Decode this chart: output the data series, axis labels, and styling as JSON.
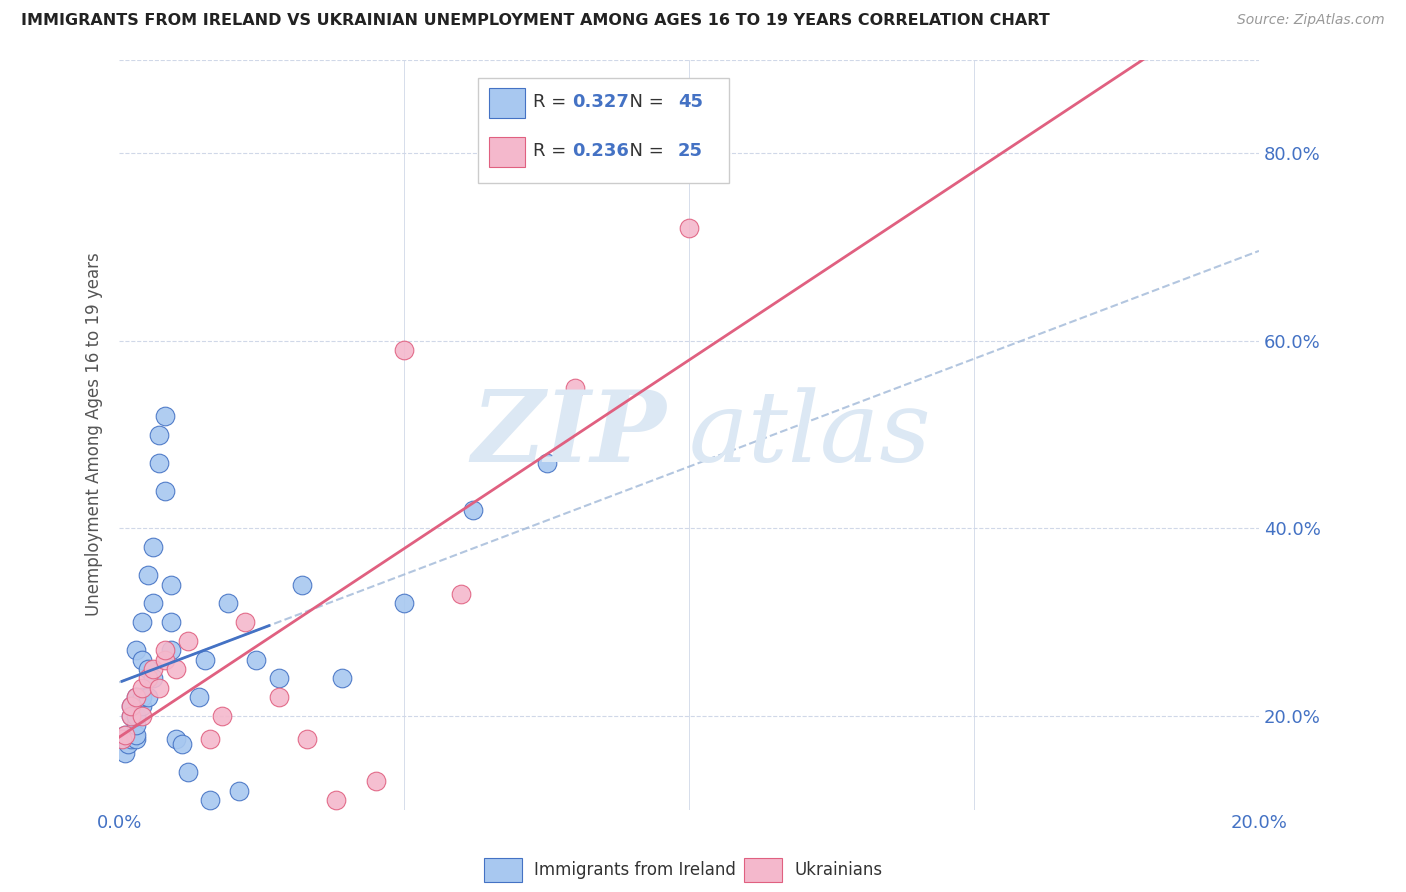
{
  "title": "IMMIGRANTS FROM IRELAND VS UKRAINIAN UNEMPLOYMENT AMONG AGES 16 TO 19 YEARS CORRELATION CHART",
  "source": "Source: ZipAtlas.com",
  "ylabel": "Unemployment Among Ages 16 to 19 years",
  "legend_R1": "0.327",
  "legend_N1": "45",
  "legend_R2": "0.236",
  "legend_N2": "25",
  "series1_color": "#a8c8f0",
  "series2_color": "#f4b8cc",
  "trendline1_color": "#4472c4",
  "trendline2_color": "#e06080",
  "background_color": "#ffffff",
  "grid_color": "#d0d8e8",
  "blue_points_x": [
    0.0005,
    0.001,
    0.001,
    0.0015,
    0.002,
    0.002,
    0.002,
    0.003,
    0.003,
    0.003,
    0.003,
    0.003,
    0.003,
    0.004,
    0.004,
    0.004,
    0.004,
    0.005,
    0.005,
    0.005,
    0.006,
    0.006,
    0.006,
    0.007,
    0.007,
    0.008,
    0.008,
    0.009,
    0.009,
    0.009,
    0.01,
    0.011,
    0.012,
    0.014,
    0.015,
    0.016,
    0.019,
    0.021,
    0.024,
    0.028,
    0.032,
    0.039,
    0.05,
    0.062,
    0.075
  ],
  "blue_points_y": [
    0.175,
    0.18,
    0.16,
    0.17,
    0.175,
    0.2,
    0.21,
    0.175,
    0.18,
    0.19,
    0.2,
    0.22,
    0.27,
    0.21,
    0.22,
    0.26,
    0.3,
    0.22,
    0.25,
    0.35,
    0.32,
    0.38,
    0.24,
    0.47,
    0.5,
    0.52,
    0.44,
    0.34,
    0.3,
    0.27,
    0.175,
    0.17,
    0.14,
    0.22,
    0.26,
    0.11,
    0.32,
    0.12,
    0.26,
    0.24,
    0.34,
    0.24,
    0.32,
    0.42,
    0.47
  ],
  "pink_points_x": [
    0.0005,
    0.001,
    0.002,
    0.002,
    0.003,
    0.004,
    0.004,
    0.005,
    0.006,
    0.007,
    0.008,
    0.008,
    0.01,
    0.012,
    0.016,
    0.018,
    0.022,
    0.028,
    0.033,
    0.038,
    0.045,
    0.05,
    0.06,
    0.08,
    0.1
  ],
  "pink_points_y": [
    0.175,
    0.18,
    0.2,
    0.21,
    0.22,
    0.2,
    0.23,
    0.24,
    0.25,
    0.23,
    0.26,
    0.27,
    0.25,
    0.28,
    0.175,
    0.2,
    0.3,
    0.22,
    0.175,
    0.11,
    0.13,
    0.59,
    0.33,
    0.55,
    0.72
  ],
  "xlim": [
    0.0,
    0.2
  ],
  "ylim": [
    0.1,
    0.9
  ],
  "yticks": [
    0.2,
    0.4,
    0.6,
    0.8
  ],
  "yticklabels": [
    "20.0%",
    "40.0%",
    "60.0%",
    "80.0%"
  ],
  "xticks": [
    0.0,
    0.05,
    0.1,
    0.15,
    0.2
  ],
  "xticklabels_show": [
    "0.0%",
    "20.0%"
  ]
}
